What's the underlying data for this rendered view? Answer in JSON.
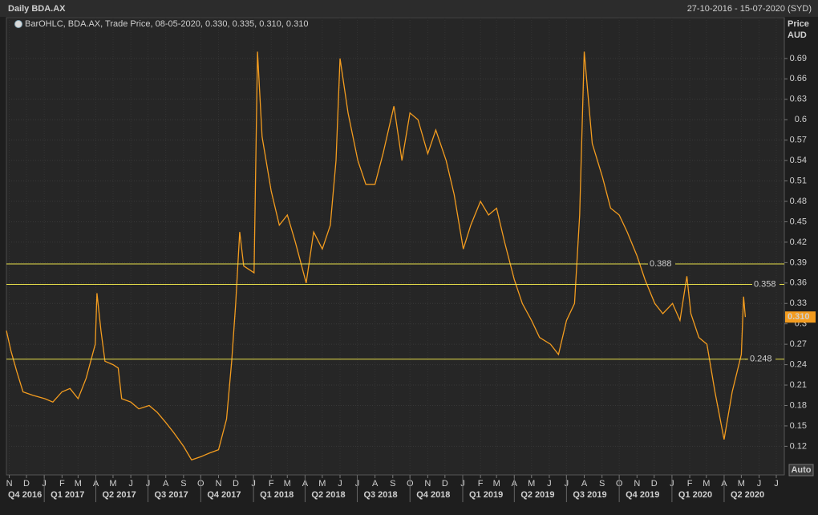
{
  "chart_data": {
    "type": "line",
    "title": "Daily BDA.AX",
    "date_range": "27-10-2016 - 15-07-2020 (SYD)",
    "y_axis_label": "Price",
    "y_axis_unit": "AUD",
    "auto_button": "Auto",
    "grid": true,
    "x": [
      "2016-10-27",
      "2016-11-04",
      "2016-11-14",
      "2016-11-25",
      "2016-12-12",
      "2017-01-02",
      "2017-01-16",
      "2017-02-01",
      "2017-02-15",
      "2017-03-01",
      "2017-03-15",
      "2017-03-31",
      "2017-04-03",
      "2017-04-10",
      "2017-04-17",
      "2017-05-01",
      "2017-05-10",
      "2017-05-16",
      "2017-06-01",
      "2017-06-15",
      "2017-07-03",
      "2017-07-17",
      "2017-08-01",
      "2017-08-15",
      "2017-09-01",
      "2017-09-15",
      "2017-10-02",
      "2017-10-16",
      "2017-11-01",
      "2017-11-15",
      "2017-11-24",
      "2017-12-01",
      "2017-12-08",
      "2017-12-15",
      "2018-01-02",
      "2018-01-08",
      "2018-01-16",
      "2018-02-01",
      "2018-02-15",
      "2018-03-01",
      "2018-03-15",
      "2018-04-03",
      "2018-04-16",
      "2018-05-01",
      "2018-05-15",
      "2018-05-25",
      "2018-06-01",
      "2018-06-15",
      "2018-07-02",
      "2018-07-16",
      "2018-08-01",
      "2018-08-15",
      "2018-09-03",
      "2018-09-17",
      "2018-10-01",
      "2018-10-15",
      "2018-11-01",
      "2018-11-15",
      "2018-12-03",
      "2018-12-17",
      "2019-01-02",
      "2019-01-15",
      "2019-02-01",
      "2019-02-15",
      "2019-03-01",
      "2019-03-15",
      "2019-04-01",
      "2019-04-15",
      "2019-05-01",
      "2019-05-15",
      "2019-06-03",
      "2019-06-17",
      "2019-07-01",
      "2019-07-15",
      "2019-07-24",
      "2019-08-01",
      "2019-08-15",
      "2019-09-02",
      "2019-09-16",
      "2019-10-01",
      "2019-10-15",
      "2019-11-01",
      "2019-11-15",
      "2019-12-02",
      "2019-12-16",
      "2020-01-02",
      "2020-01-15",
      "2020-01-27",
      "2020-02-03",
      "2020-02-17",
      "2020-03-02",
      "2020-03-16",
      "2020-04-01",
      "2020-04-15",
      "2020-05-01",
      "2020-05-05",
      "2020-05-08"
    ],
    "series": [
      {
        "name": "BarOHLC, BDA.AX, Trade Price, 08-05-2020, 0.330, 0.335, 0.310, 0.310",
        "color": "#f39c1f",
        "values": [
          0.29,
          0.26,
          0.23,
          0.2,
          0.195,
          0.19,
          0.185,
          0.2,
          0.205,
          0.19,
          0.22,
          0.27,
          0.345,
          0.29,
          0.245,
          0.24,
          0.235,
          0.19,
          0.185,
          0.175,
          0.18,
          0.17,
          0.155,
          0.14,
          0.12,
          0.1,
          0.105,
          0.11,
          0.115,
          0.16,
          0.245,
          0.33,
          0.435,
          0.385,
          0.375,
          0.7,
          0.575,
          0.495,
          0.445,
          0.46,
          0.42,
          0.36,
          0.435,
          0.41,
          0.445,
          0.54,
          0.69,
          0.61,
          0.54,
          0.505,
          0.505,
          0.55,
          0.62,
          0.54,
          0.61,
          0.6,
          0.55,
          0.585,
          0.54,
          0.49,
          0.41,
          0.445,
          0.48,
          0.46,
          0.47,
          0.42,
          0.365,
          0.33,
          0.305,
          0.28,
          0.27,
          0.255,
          0.305,
          0.33,
          0.46,
          0.7,
          0.565,
          0.515,
          0.47,
          0.46,
          0.435,
          0.4,
          0.365,
          0.33,
          0.315,
          0.33,
          0.305,
          0.37,
          0.315,
          0.28,
          0.27,
          0.2,
          0.13,
          0.2,
          0.255,
          0.34,
          0.31
        ]
      }
    ],
    "xlim": [
      "2016-10-27",
      "2020-07-15"
    ],
    "ylim": [
      0.078,
      0.75
    ],
    "yticks": [
      0.12,
      0.15,
      0.18,
      0.21,
      0.24,
      0.27,
      0.3,
      0.33,
      0.36,
      0.39,
      0.42,
      0.45,
      0.48,
      0.51,
      0.54,
      0.57,
      0.6,
      0.63,
      0.66,
      0.69
    ],
    "xticks": [
      {
        "value": "2016-11-01",
        "label": "N"
      },
      {
        "value": "2016-12-01",
        "label": "D"
      },
      {
        "value": "2017-01-01",
        "label": "J"
      },
      {
        "value": "2017-02-01",
        "label": "F"
      },
      {
        "value": "2017-03-01",
        "label": "M"
      },
      {
        "value": "2017-04-01",
        "label": "A"
      },
      {
        "value": "2017-05-01",
        "label": "M"
      },
      {
        "value": "2017-06-01",
        "label": "J"
      },
      {
        "value": "2017-07-01",
        "label": "J"
      },
      {
        "value": "2017-08-01",
        "label": "A"
      },
      {
        "value": "2017-09-01",
        "label": "S"
      },
      {
        "value": "2017-10-01",
        "label": "O"
      },
      {
        "value": "2017-11-01",
        "label": "N"
      },
      {
        "value": "2017-12-01",
        "label": "D"
      },
      {
        "value": "2018-01-01",
        "label": "J"
      },
      {
        "value": "2018-02-01",
        "label": "F"
      },
      {
        "value": "2018-03-01",
        "label": "M"
      },
      {
        "value": "2018-04-01",
        "label": "A"
      },
      {
        "value": "2018-05-01",
        "label": "M"
      },
      {
        "value": "2018-06-01",
        "label": "J"
      },
      {
        "value": "2018-07-01",
        "label": "J"
      },
      {
        "value": "2018-08-01",
        "label": "A"
      },
      {
        "value": "2018-09-01",
        "label": "S"
      },
      {
        "value": "2018-10-01",
        "label": "O"
      },
      {
        "value": "2018-11-01",
        "label": "N"
      },
      {
        "value": "2018-12-01",
        "label": "D"
      },
      {
        "value": "2019-01-01",
        "label": "J"
      },
      {
        "value": "2019-02-01",
        "label": "F"
      },
      {
        "value": "2019-03-01",
        "label": "M"
      },
      {
        "value": "2019-04-01",
        "label": "A"
      },
      {
        "value": "2019-05-01",
        "label": "M"
      },
      {
        "value": "2019-06-01",
        "label": "J"
      },
      {
        "value": "2019-07-01",
        "label": "J"
      },
      {
        "value": "2019-08-01",
        "label": "A"
      },
      {
        "value": "2019-09-01",
        "label": "S"
      },
      {
        "value": "2019-10-01",
        "label": "O"
      },
      {
        "value": "2019-11-01",
        "label": "N"
      },
      {
        "value": "2019-12-01",
        "label": "D"
      },
      {
        "value": "2020-01-01",
        "label": "J"
      },
      {
        "value": "2020-02-01",
        "label": "F"
      },
      {
        "value": "2020-03-01",
        "label": "M"
      },
      {
        "value": "2020-04-01",
        "label": "A"
      },
      {
        "value": "2020-05-01",
        "label": "M"
      },
      {
        "value": "2020-06-01",
        "label": "J"
      },
      {
        "value": "2020-07-01",
        "label": "J"
      }
    ],
    "quarter_ticks": [
      {
        "value": "2016-10-01",
        "label": "Q4 2016"
      },
      {
        "value": "2017-01-01",
        "label": "Q1 2017"
      },
      {
        "value": "2017-04-01",
        "label": "Q2 2017"
      },
      {
        "value": "2017-07-01",
        "label": "Q3 2017"
      },
      {
        "value": "2017-10-01",
        "label": "Q4 2017"
      },
      {
        "value": "2018-01-01",
        "label": "Q1 2018"
      },
      {
        "value": "2018-04-01",
        "label": "Q2 2018"
      },
      {
        "value": "2018-07-01",
        "label": "Q3 2018"
      },
      {
        "value": "2018-10-01",
        "label": "Q4 2018"
      },
      {
        "value": "2019-01-01",
        "label": "Q1 2019"
      },
      {
        "value": "2019-04-01",
        "label": "Q2 2019"
      },
      {
        "value": "2019-07-01",
        "label": "Q3 2019"
      },
      {
        "value": "2019-10-01",
        "label": "Q4 2019"
      },
      {
        "value": "2020-01-01",
        "label": "Q1 2020"
      },
      {
        "value": "2020-04-01",
        "label": "Q2 2020"
      }
    ],
    "hlines": [
      0.388,
      0.358,
      0.248
    ],
    "hline_color": "#e8e04a",
    "last_price": {
      "value": 0.31,
      "label": "0.310"
    }
  }
}
